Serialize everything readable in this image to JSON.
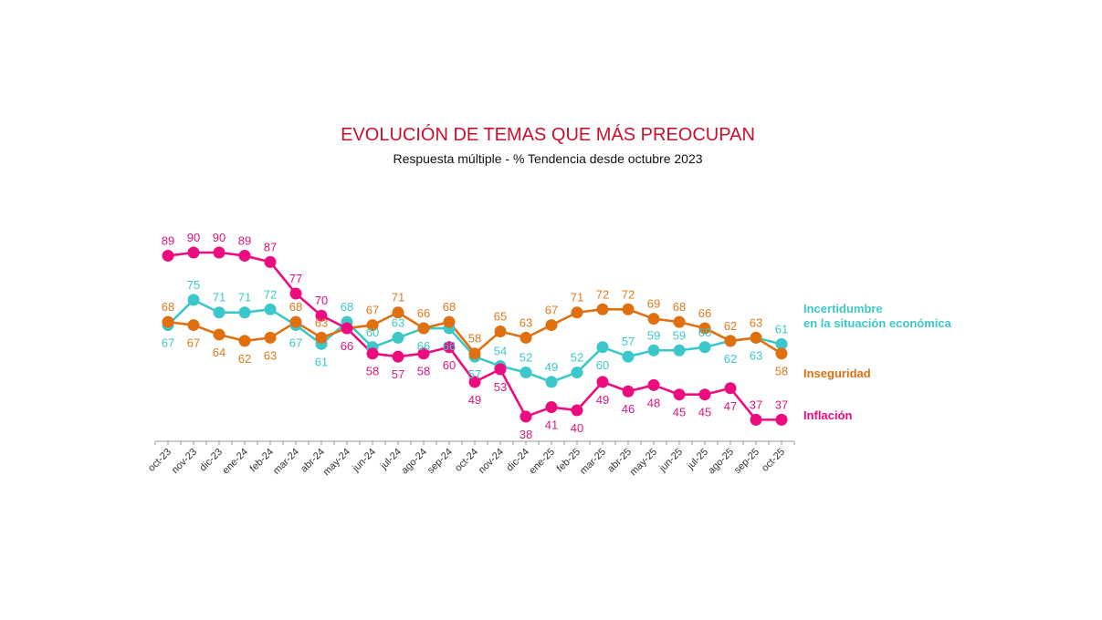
{
  "chart_data": {
    "type": "line",
    "title": "EVOLUCIÓN DE TEMAS QUE MÁS PREOCUPAN",
    "subtitle": "Respuesta múltiple - % Tendencia desde octubre 2023",
    "xlabel": "",
    "ylabel": "",
    "grid": false,
    "legend_placement": "right",
    "categories": [
      "oct-23",
      "nov-23",
      "dic-23",
      "ene-24",
      "feb-24",
      "mar-24",
      "abr-24",
      "may-24",
      "jun-24",
      "jul-24",
      "ago-24",
      "sep-24",
      "oct-24",
      "nov-24",
      "dic-24",
      "ene-25",
      "feb-25",
      "mar-25",
      "abr-25",
      "may-25",
      "jun-25",
      "jul-25",
      "ago-25",
      "sep-25",
      "oct-25"
    ],
    "series": [
      {
        "name": "Incertidumbre en la situación económica",
        "legend_lines": [
          "Incertidumbre",
          "en la situación económica"
        ],
        "color": "#3CC8CA",
        "values": [
          67,
          75,
          71,
          71,
          72,
          67,
          61,
          68,
          60,
          63,
          66,
          66,
          57,
          54,
          52,
          49,
          52,
          60,
          57,
          59,
          59,
          60,
          62,
          63,
          61
        ]
      },
      {
        "name": "Inseguridad",
        "legend_lines": [
          "Inseguridad"
        ],
        "color": "#E0700F",
        "values": [
          68,
          67,
          64,
          62,
          63,
          68,
          63,
          66,
          67,
          71,
          66,
          68,
          58,
          65,
          63,
          67,
          71,
          72,
          72,
          69,
          68,
          66,
          62,
          63,
          58
        ]
      },
      {
        "name": "Inflación",
        "legend_lines": [
          "Inflación"
        ],
        "color": "#EC0C80",
        "values": [
          89,
          90,
          90,
          89,
          87,
          77,
          70,
          66,
          58,
          57,
          58,
          60,
          49,
          53,
          38,
          41,
          40,
          49,
          46,
          48,
          45,
          45,
          47,
          37,
          37
        ]
      }
    ]
  }
}
